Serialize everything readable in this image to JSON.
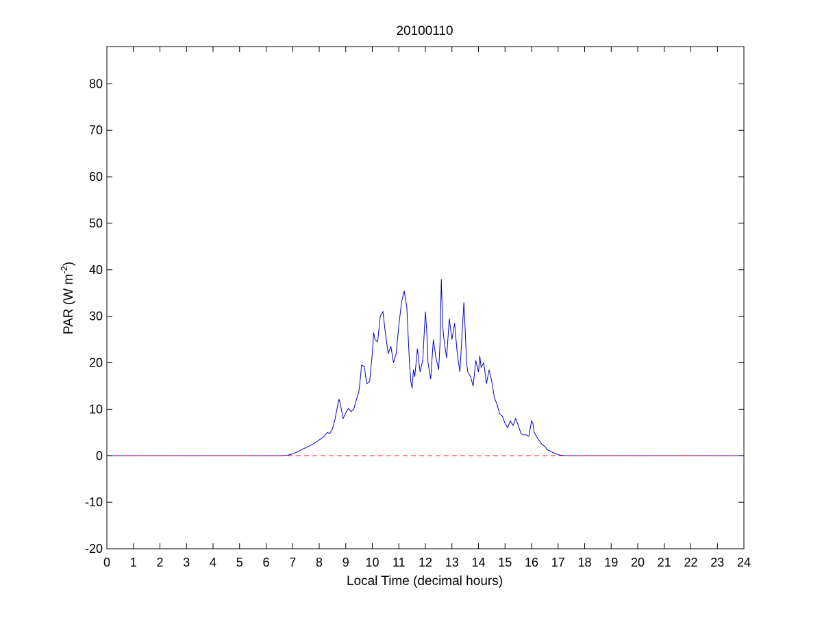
{
  "chart_data": {
    "type": "line",
    "title": "20100110",
    "xlabel": "Local Time (decimal hours)",
    "ylabel": {
      "prefix": "PAR (W m",
      "superscript": "-2",
      "suffix": ")"
    },
    "xlim": [
      0,
      24
    ],
    "ylim": [
      -20,
      88
    ],
    "xticks": [
      0,
      1,
      2,
      3,
      4,
      5,
      6,
      7,
      8,
      9,
      10,
      11,
      12,
      13,
      14,
      15,
      16,
      17,
      18,
      19,
      20,
      21,
      22,
      23,
      24
    ],
    "yticks": [
      -20,
      -10,
      0,
      10,
      20,
      30,
      40,
      50,
      60,
      70,
      80
    ],
    "grid": false,
    "series": [
      {
        "color": "#0000cc",
        "style": "solid",
        "x": [
          0,
          6.5,
          6.8,
          7.0,
          7.2,
          7.4,
          7.6,
          7.8,
          8.0,
          8.2,
          8.3,
          8.4,
          8.5,
          8.6,
          8.7,
          8.75,
          8.8,
          8.9,
          9.0,
          9.1,
          9.2,
          9.3,
          9.4,
          9.5,
          9.6,
          9.7,
          9.75,
          9.8,
          9.9,
          10.0,
          10.05,
          10.1,
          10.2,
          10.3,
          10.4,
          10.5,
          10.6,
          10.7,
          10.8,
          10.9,
          11.0,
          11.1,
          11.2,
          11.3,
          11.4,
          11.45,
          11.5,
          11.55,
          11.6,
          11.7,
          11.8,
          11.9,
          12.0,
          12.05,
          12.1,
          12.2,
          12.3,
          12.4,
          12.5,
          12.55,
          12.6,
          12.65,
          12.7,
          12.8,
          12.9,
          13.0,
          13.1,
          13.2,
          13.3,
          13.4,
          13.45,
          13.5,
          13.55,
          13.6,
          13.7,
          13.8,
          13.9,
          14.0,
          14.05,
          14.1,
          14.2,
          14.3,
          14.4,
          14.5,
          14.6,
          14.7,
          14.8,
          14.9,
          15.0,
          15.1,
          15.2,
          15.3,
          15.4,
          15.5,
          15.6,
          15.7,
          15.8,
          15.9,
          16.0,
          16.05,
          16.1,
          16.2,
          16.3,
          16.4,
          16.5,
          16.6,
          16.7,
          16.8,
          16.9,
          17.0,
          17.2,
          17.4,
          17.6,
          24
        ],
        "y": [
          0,
          0,
          0.1,
          0.4,
          0.9,
          1.5,
          2.0,
          2.6,
          3.4,
          4.2,
          5.0,
          4.8,
          5.8,
          8.0,
          11.0,
          12.2,
          11.0,
          8.0,
          9.2,
          10.2,
          9.5,
          10.0,
          12.0,
          14.0,
          19.5,
          19.2,
          17.0,
          15.5,
          16.0,
          22.0,
          26.5,
          25.0,
          24.5,
          30.0,
          31.0,
          26.0,
          22.0,
          23.5,
          20.0,
          22.0,
          28.0,
          33.0,
          35.5,
          32.0,
          20.0,
          16.0,
          14.5,
          18.5,
          17.0,
          23.0,
          18.0,
          20.5,
          31.0,
          27.0,
          20.0,
          16.5,
          25.0,
          21.0,
          18.5,
          24.0,
          38.0,
          28.0,
          25.0,
          21.0,
          29.5,
          25.0,
          28.5,
          22.0,
          18.0,
          28.0,
          33.0,
          27.0,
          20.0,
          18.0,
          17.0,
          15.0,
          20.5,
          18.0,
          21.5,
          19.0,
          20.0,
          15.5,
          18.5,
          16.0,
          12.5,
          11.0,
          9.0,
          8.5,
          7.0,
          6.0,
          7.5,
          6.5,
          8.0,
          6.5,
          4.8,
          4.5,
          4.5,
          4.2,
          7.5,
          7.0,
          5.0,
          4.0,
          3.2,
          2.4,
          2.0,
          1.3,
          1.0,
          0.7,
          0.5,
          0.2,
          0.05,
          0,
          0,
          0
        ]
      },
      {
        "color": "#ff0000",
        "style": "dashed",
        "x": [
          0,
          24
        ],
        "y": [
          0,
          0
        ]
      }
    ]
  }
}
